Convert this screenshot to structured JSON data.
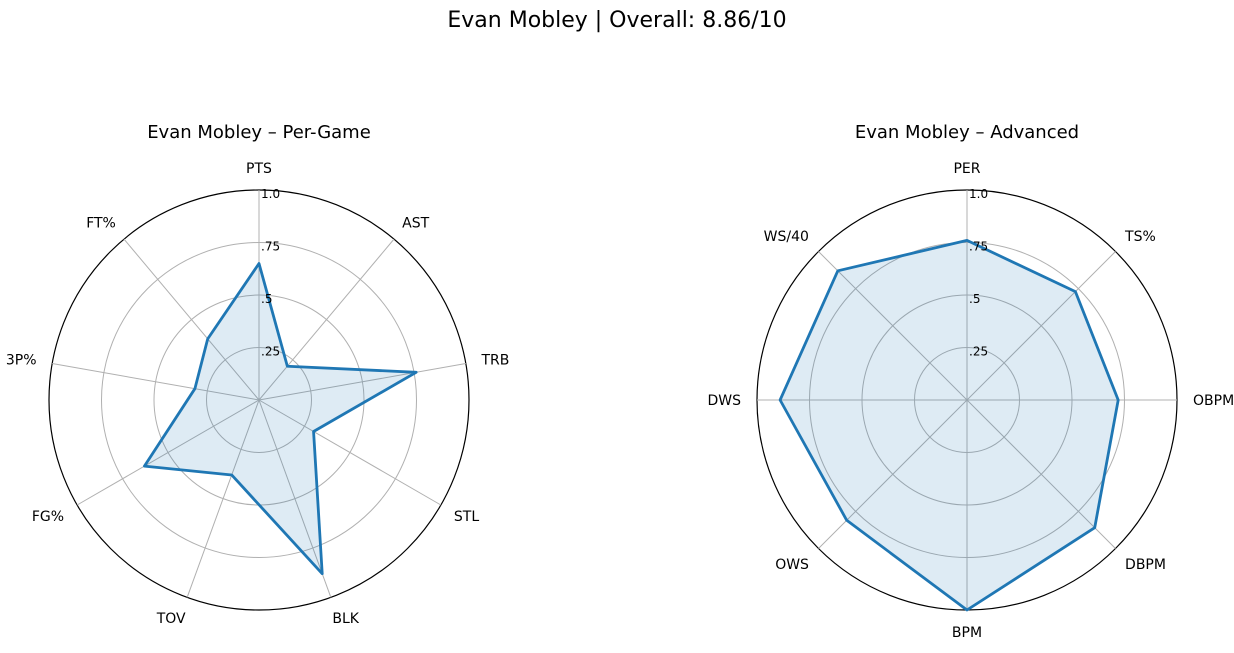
{
  "figure": {
    "suptitle": "Evan Mobley | Overall: 8.86/10"
  },
  "chart_data": [
    {
      "type": "radar",
      "title": "Evan Mobley – Per-Game",
      "axes": [
        "PTS",
        "AST",
        "TRB",
        "STL",
        "BLK",
        "TOV",
        "FG%",
        "3P%",
        "FT%"
      ],
      "values": [
        0.65,
        0.21,
        0.76,
        0.3,
        0.88,
        0.38,
        0.63,
        0.31,
        0.38
      ],
      "rlim": [
        0,
        1.0
      ],
      "rticks": [
        ".25",
        ".5",
        ".75",
        "1.0"
      ],
      "grid": true,
      "color": "#1f77b4"
    },
    {
      "type": "radar",
      "title": "Evan Mobley – Advanced",
      "axes": [
        "PER",
        "TS%",
        "OBPM",
        "DBPM",
        "BPM",
        "OWS",
        "DWS",
        "WS/40"
      ],
      "values": [
        0.76,
        0.73,
        0.72,
        0.86,
        1.0,
        0.81,
        0.89,
        0.87
      ],
      "rlim": [
        0,
        1.0
      ],
      "rticks": [
        ".25",
        ".5",
        ".75",
        "1.0"
      ],
      "grid": true,
      "color": "#1f77b4"
    }
  ]
}
